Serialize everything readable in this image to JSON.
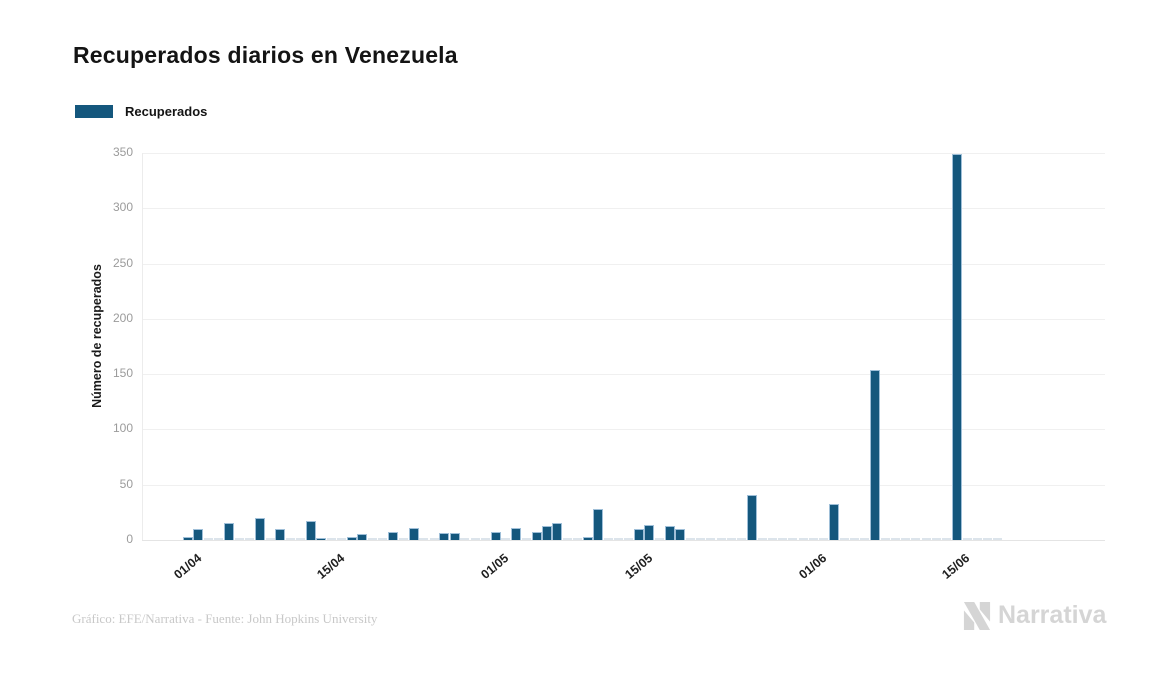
{
  "header": {
    "title": "Recuperados diarios en Venezuela"
  },
  "legend": {
    "label": "Recuperados",
    "swatch_color": "#14577D"
  },
  "chart_data": {
    "type": "bar",
    "title": "Recuperados diarios en Venezuela",
    "xlabel": "",
    "ylabel": "Número de recuperados",
    "ylim": [
      0,
      350
    ],
    "yticks": [
      0,
      50,
      100,
      150,
      200,
      250,
      300,
      350
    ],
    "grid": true,
    "legend_position": "top-left",
    "series_name": "Recuperados",
    "dates": [
      "01/04",
      "02/04",
      "03/04",
      "04/04",
      "05/04",
      "06/04",
      "07/04",
      "08/04",
      "09/04",
      "10/04",
      "11/04",
      "12/04",
      "13/04",
      "14/04",
      "15/04",
      "16/04",
      "17/04",
      "18/04",
      "19/04",
      "20/04",
      "21/04",
      "22/04",
      "23/04",
      "24/04",
      "25/04",
      "26/04",
      "27/04",
      "28/04",
      "29/04",
      "30/04",
      "01/05",
      "02/05",
      "03/05",
      "04/05",
      "05/05",
      "06/05",
      "07/05",
      "08/05",
      "09/05",
      "10/05",
      "11/05",
      "12/05",
      "13/05",
      "14/05",
      "15/05",
      "16/05",
      "17/05",
      "18/05",
      "19/05",
      "20/05",
      "21/05",
      "22/05",
      "23/05",
      "24/05",
      "25/05",
      "26/05",
      "27/05",
      "28/05",
      "29/05",
      "30/05",
      "31/05",
      "01/06",
      "02/06",
      "03/06",
      "04/06",
      "05/06",
      "06/06",
      "07/06",
      "08/06",
      "09/06",
      "10/06",
      "11/06",
      "12/06",
      "13/06",
      "14/06",
      "15/06",
      "16/06",
      "17/06",
      "18/06",
      "19/06"
    ],
    "values": [
      3,
      10,
      0,
      0,
      15,
      0,
      0,
      20,
      0,
      10,
      0,
      0,
      17,
      2,
      0,
      0,
      3,
      5,
      0,
      0,
      7,
      0,
      11,
      0,
      0,
      6,
      6,
      0,
      0,
      0,
      7,
      0,
      11,
      0,
      7,
      13,
      15,
      0,
      0,
      3,
      28,
      0,
      0,
      0,
      10,
      14,
      0,
      13,
      10,
      0,
      0,
      0,
      0,
      0,
      0,
      41,
      0,
      0,
      0,
      0,
      0,
      0,
      0,
      33,
      0,
      0,
      0,
      154,
      0,
      0,
      0,
      0,
      0,
      0,
      0,
      349,
      0,
      0,
      0,
      0
    ],
    "xtick_labels": [
      "01/04",
      "15/04",
      "01/05",
      "15/05",
      "01/06",
      "15/06"
    ],
    "xtick_day_index": [
      0,
      14,
      30,
      44,
      61,
      75
    ],
    "colors": {
      "bar": "#14577D",
      "bar_stroke": "#9FBFD8",
      "zero_bar": "#DCE4EB",
      "grid": "#F0F0F0",
      "axis_text": "#9B9B9B",
      "xtick_text": "#202020"
    }
  },
  "footer": {
    "credit": "Gráfico: EFE/Narrativa - Fuente: John Hopkins University",
    "logo_text": "Narrativa"
  }
}
